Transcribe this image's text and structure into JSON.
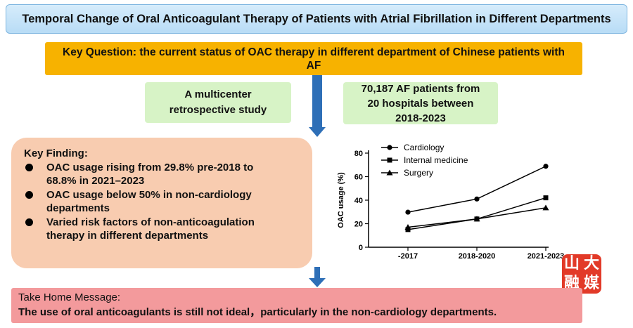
{
  "title": "Temporal Change of Oral Anticoagulant Therapy of Patients with Atrial Fibrillation in Different Departments",
  "key_question": "Key Question: the current status of OAC therapy in different department of Chinese patients with AF",
  "study_design": "A multicenter\nretrospective study",
  "population": "70,187 AF patients from\n20 hospitals between\n2018-2023",
  "key_finding": {
    "title": "Key Finding:",
    "items": [
      "OAC usage rising from 29.8% pre-2018 to\n68.8% in 2021–2023",
      "OAC usage below 50% in non-cardiology\ndepartments",
      "Varied risk factors of non-anticoagulation\ntherapy in different departments"
    ]
  },
  "take_home": {
    "title": "Take Home Message:",
    "text": "The use of oral anticoagulants is still not ideal，particularly in the non-cardiology departments."
  },
  "logo_chars": [
    "山",
    "大",
    "融",
    "媒"
  ],
  "colors": {
    "title_bg": "#c4e3f8",
    "key_question_bg": "#f7b200",
    "green_box_bg": "#d7f3c6",
    "finding_bg": "#f8ccb0",
    "take_home_bg": "#f39a9c",
    "arrow": "#2e6fb7",
    "logo_bg": "#e23a28"
  },
  "chart_data": {
    "type": "line",
    "categories": [
      "-2017",
      "2018-2020",
      "2021-2023"
    ],
    "ylabel": "OAC usage (%)",
    "xlabel": "",
    "ylim": [
      0,
      80
    ],
    "yticks": [
      0,
      20,
      40,
      60,
      80
    ],
    "legend_position": "top-left",
    "grid": false,
    "series": [
      {
        "name": "Cardiology",
        "marker": "circle",
        "values": [
          29.8,
          41,
          68.8
        ]
      },
      {
        "name": "Internal medicine",
        "marker": "square",
        "values": [
          15,
          24,
          42
        ]
      },
      {
        "name": "Surgery",
        "marker": "triangle",
        "values": [
          17,
          24,
          33.5
        ]
      }
    ]
  }
}
